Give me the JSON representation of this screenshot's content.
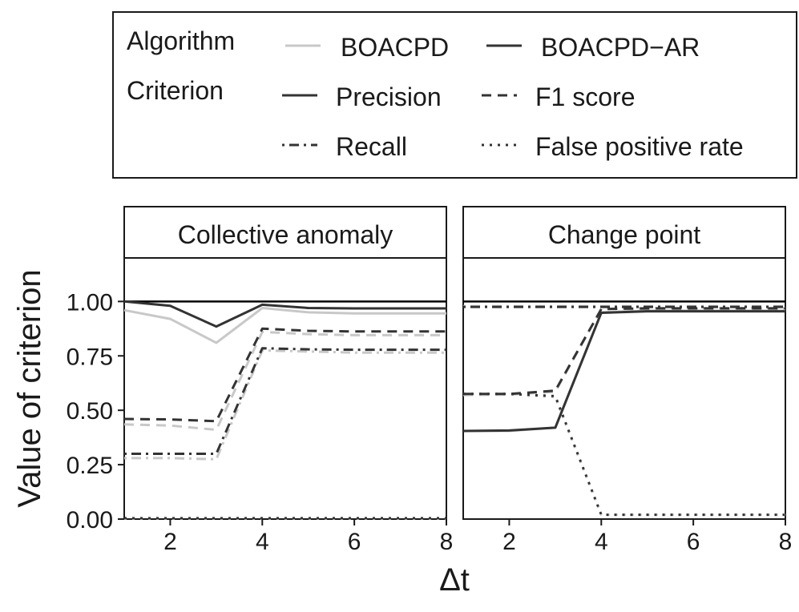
{
  "chart_data": {
    "type": "line",
    "ylabel": "Value of criterion",
    "xlabel": "Δt",
    "xlim": [
      1,
      8
    ],
    "ylim": [
      0,
      1.2
    ],
    "x_ticks": [
      2,
      4,
      6,
      8
    ],
    "y_ticks": [
      "0.00",
      "0.25",
      "0.50",
      "0.75",
      "1.00"
    ],
    "y_tick_values": [
      0,
      0.25,
      0.5,
      0.75,
      1.0
    ],
    "reference_line": 1.0,
    "legend": {
      "algorithm_title": "Algorithm",
      "criterion_title": "Criterion",
      "algorithms": [
        {
          "name": "BOACPD",
          "color": "#c8c8c8"
        },
        {
          "name": "BOACPD−AR",
          "color": "#333333"
        }
      ],
      "criteria": [
        {
          "name": "Precision",
          "dash": "solid"
        },
        {
          "name": "F1 score",
          "dash": "dashed"
        },
        {
          "name": "Recall",
          "dash": "dotdash"
        },
        {
          "name": "False positive rate",
          "dash": "dotted"
        }
      ]
    },
    "x": [
      1,
      2,
      3,
      4,
      5,
      6,
      7,
      8
    ],
    "panels": [
      {
        "title": "Collective anomaly",
        "series": [
          {
            "algorithm": "BOACPD",
            "criterion": "Precision",
            "values": [
              0.96,
              0.92,
              0.81,
              0.97,
              0.95,
              0.945,
              0.945,
              0.945
            ]
          },
          {
            "algorithm": "BOACPD−AR",
            "criterion": "Precision",
            "values": [
              1.0,
              0.98,
              0.885,
              0.985,
              0.97,
              0.968,
              0.968,
              0.968
            ]
          },
          {
            "algorithm": "BOACPD",
            "criterion": "F1 score",
            "values": [
              0.435,
              0.43,
              0.41,
              0.86,
              0.85,
              0.845,
              0.845,
              0.845
            ]
          },
          {
            "algorithm": "BOACPD−AR",
            "criterion": "F1 score",
            "values": [
              0.46,
              0.458,
              0.45,
              0.875,
              0.865,
              0.862,
              0.862,
              0.862
            ]
          },
          {
            "algorithm": "BOACPD",
            "criterion": "Recall",
            "values": [
              0.28,
              0.28,
              0.275,
              0.775,
              0.77,
              0.765,
              0.765,
              0.765
            ]
          },
          {
            "algorithm": "BOACPD−AR",
            "criterion": "Recall",
            "values": [
              0.3,
              0.3,
              0.3,
              0.785,
              0.78,
              0.778,
              0.778,
              0.778
            ]
          },
          {
            "algorithm": "BOACPD",
            "criterion": "False positive rate",
            "values": [
              0.002,
              0.002,
              0.002,
              0.002,
              0.002,
              0.002,
              0.002,
              0.002
            ]
          },
          {
            "algorithm": "BOACPD−AR",
            "criterion": "False positive rate",
            "values": [
              0.004,
              0.004,
              0.004,
              0.004,
              0.004,
              0.004,
              0.004,
              0.004
            ]
          }
        ]
      },
      {
        "title": "Change point",
        "series": [
          {
            "algorithm": "BOACPD",
            "criterion": "Precision",
            "values": [
              0.405,
              0.405,
              0.42,
              0.95,
              0.958,
              0.958,
              0.958,
              0.958
            ]
          },
          {
            "algorithm": "BOACPD−AR",
            "criterion": "Precision",
            "values": [
              0.405,
              0.407,
              0.42,
              0.948,
              0.955,
              0.955,
              0.955,
              0.955
            ]
          },
          {
            "algorithm": "BOACPD",
            "criterion": "F1 score",
            "values": [
              0.57,
              0.572,
              0.585,
              0.965,
              0.97,
              0.97,
              0.97,
              0.97
            ]
          },
          {
            "algorithm": "BOACPD−AR",
            "criterion": "F1 score",
            "values": [
              0.575,
              0.575,
              0.59,
              0.965,
              0.968,
              0.968,
              0.968,
              0.968
            ]
          },
          {
            "algorithm": "BOACPD",
            "criterion": "Recall",
            "values": [
              0.978,
              0.978,
              0.978,
              0.978,
              0.978,
              0.978,
              0.978,
              0.978
            ]
          },
          {
            "algorithm": "BOACPD−AR",
            "criterion": "Recall",
            "values": [
              0.975,
              0.975,
              0.975,
              0.975,
              0.975,
              0.975,
              0.975,
              0.975
            ]
          },
          {
            "algorithm": "BOACPD",
            "criterion": "False positive rate",
            "values": [
              0.575,
              0.575,
              0.56,
              0.02,
              0.02,
              0.02,
              0.02,
              0.02
            ]
          },
          {
            "algorithm": "BOACPD−AR",
            "criterion": "False positive rate",
            "values": [
              0.575,
              0.575,
              0.565,
              0.02,
              0.02,
              0.02,
              0.02,
              0.02
            ]
          }
        ]
      }
    ]
  }
}
